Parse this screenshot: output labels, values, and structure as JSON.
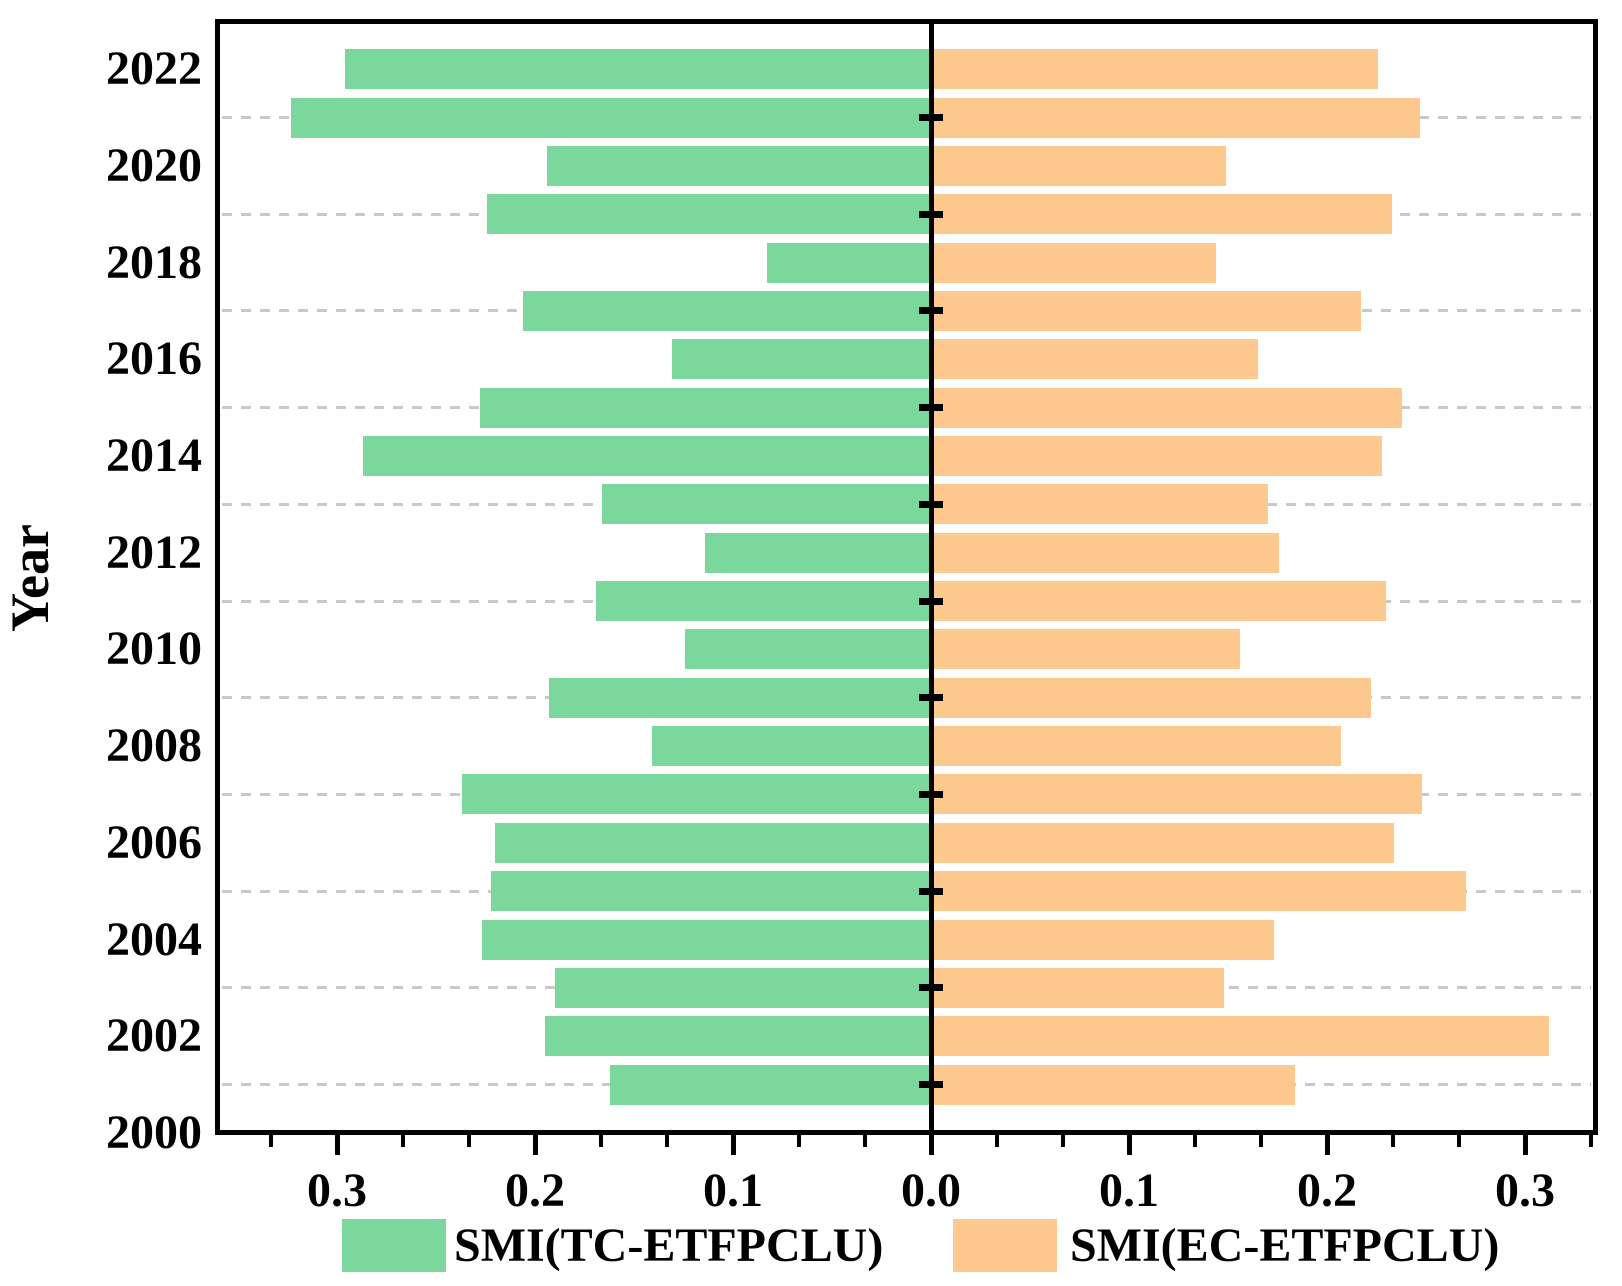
{
  "figure": {
    "y_axis_title": "Year",
    "background_color": "#ffffff",
    "axis_color": "#000000"
  },
  "legend": {
    "items": [
      {
        "label": "SMI(TC-ETFPCLU)",
        "color": "#7CD79C"
      },
      {
        "label": "SMI(EC-ETFPCLU)",
        "color": "#FDC98F"
      }
    ]
  },
  "chart_data": {
    "type": "bar",
    "orientation": "horizontal-diverging",
    "title": "",
    "xlabel": "",
    "ylabel": "Year",
    "years": [
      2022,
      2021,
      2020,
      2019,
      2018,
      2017,
      2016,
      2015,
      2014,
      2013,
      2012,
      2011,
      2010,
      2009,
      2008,
      2007,
      2006,
      2005,
      2004,
      2003,
      2002,
      2001
    ],
    "series": [
      {
        "name": "SMI(TC-ETFPCLU)",
        "side": "left",
        "color": "#7CD79C",
        "values": [
          0.296,
          0.323,
          0.194,
          0.224,
          0.083,
          0.206,
          0.131,
          0.228,
          0.287,
          0.166,
          0.114,
          0.169,
          0.124,
          0.193,
          0.141,
          0.237,
          0.22,
          0.222,
          0.227,
          0.19,
          0.195,
          0.162
        ]
      },
      {
        "name": "SMI(EC-ETFPCLU)",
        "side": "right",
        "color": "#FDC98F",
        "values": [
          0.226,
          0.247,
          0.149,
          0.233,
          0.144,
          0.217,
          0.165,
          0.238,
          0.228,
          0.17,
          0.176,
          0.23,
          0.156,
          0.222,
          0.207,
          0.248,
          0.234,
          0.27,
          0.173,
          0.148,
          0.312,
          0.184
        ]
      }
    ],
    "x_axis": {
      "major_tick_values": [
        -0.3,
        -0.2,
        -0.1,
        0.0,
        0.1,
        0.2,
        0.3
      ],
      "major_tick_labels": [
        "0.3",
        "0.2",
        "0.1",
        "0.0",
        "0.1",
        "0.2",
        "0.3"
      ],
      "minor_ticks_between_majors": 2,
      "xlim": [
        -0.359,
        0.337
      ],
      "gridlines": "dashed horizontal at odd years",
      "gridline_color": "#c9c9c9"
    },
    "y_axis": {
      "tick_labels": [
        "2022",
        "2020",
        "2018",
        "2016",
        "2014",
        "2012",
        "2010",
        "2008",
        "2006",
        "2004",
        "2002",
        "2000"
      ],
      "range": [
        2000,
        2023
      ]
    },
    "legend_position": "bottom"
  }
}
